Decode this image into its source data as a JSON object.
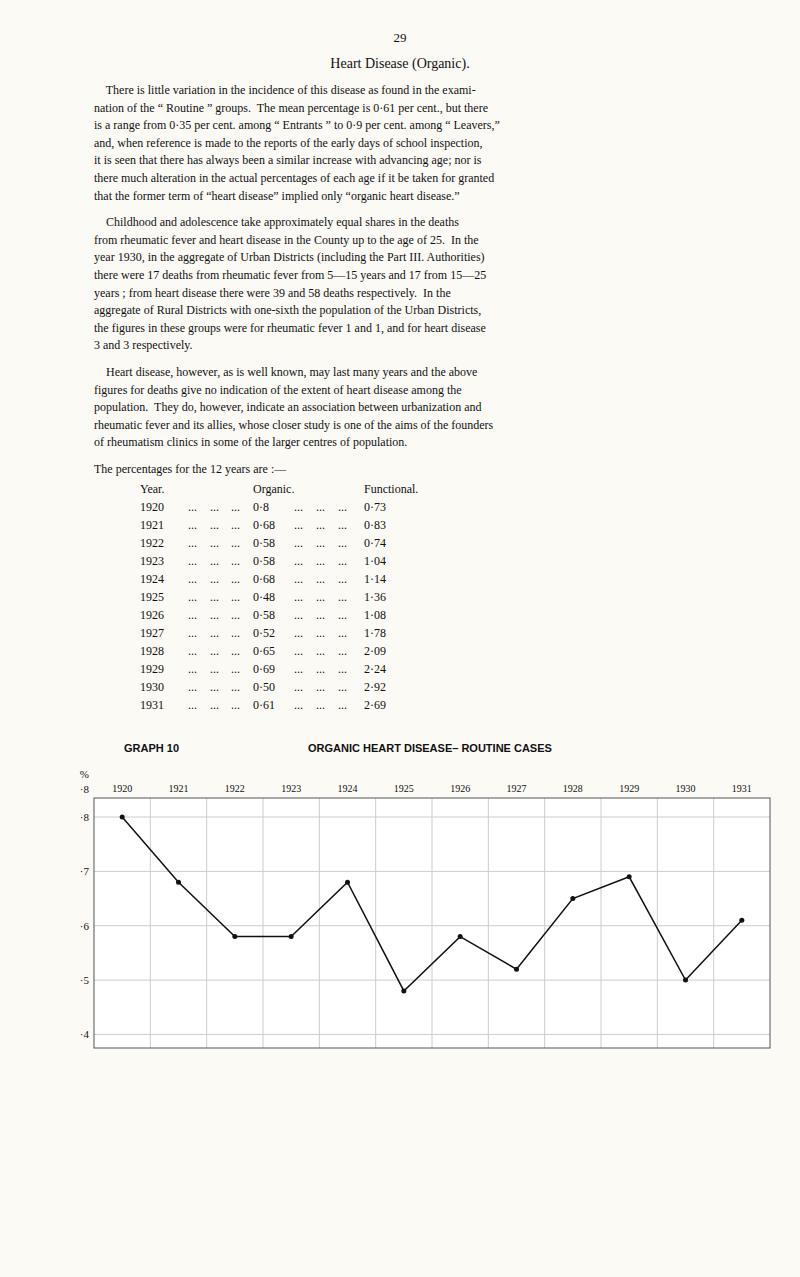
{
  "page": {
    "page_number": "29",
    "title": "Heart Disease (Organic).",
    "paragraphs": [
      [
        "    There is little variation in the incidence of this disease as found in the exami-",
        "nation of the “ Routine ” groups.  The mean percentage is 0·61 per cent., but there",
        "is a range from 0·35 per cent. among “ Entrants ” to 0·9 per cent. among “ Leavers,”",
        "and, when reference is made to the reports of the early days of school inspection,",
        "it is seen that there has always been a similar increase with advancing age; nor is",
        "there much alteration in the actual percentages of each age if it be taken for granted",
        "that the former term of “heart disease” implied only “organic heart disease.”"
      ],
      [
        "    Childhood and adolescence take approximately equal shares in the deaths",
        "from rheumatic fever and heart disease in the County up to the age of 25.  In the",
        "year 1930, in the aggregate of Urban Districts (including the Part III. Authorities)",
        "there were 17 deaths from rheumatic fever from 5—15 years and 17 from 15—25",
        "years ; from heart disease there were 39 and 58 deaths respectively.  In the",
        "aggregate of Rural Districts with one-sixth the population of the Urban Districts,",
        "the figures in these groups were for rheumatic fever 1 and 1, and for heart disease",
        "3 and 3 respectively."
      ],
      [
        "    Heart disease, however, as is well known, may last many years and the above",
        "figures for deaths give no indication of the extent of heart disease among the",
        "population.  They do, however, indicate an association between urbanization and",
        "rheumatic fever and its allies, whose closer study is one of the aims of the founders",
        "of rheumatism clinics in some of the larger centres of population."
      ]
    ],
    "table_intro": "The percentages for the 12 years are :—",
    "table_headers": [
      "Year.",
      "Organic.",
      "Functional."
    ],
    "table_leader": "...",
    "table_rows": [
      [
        "1920",
        "0·8",
        "0·73"
      ],
      [
        "1921",
        "0·68",
        "0·83"
      ],
      [
        "1922",
        "0·58",
        "0·74"
      ],
      [
        "1923",
        "0·58",
        "1·04"
      ],
      [
        "1924",
        "0·68",
        "1·14"
      ],
      [
        "1925",
        "0·48",
        "1·36"
      ],
      [
        "1926",
        "0·58",
        "1·08"
      ],
      [
        "1927",
        "0·52",
        "1·78"
      ],
      [
        "1928",
        "0·65",
        "2·09"
      ],
      [
        "1929",
        "0·69",
        "2·24"
      ],
      [
        "1930",
        "0·50",
        "2·92"
      ],
      [
        "1931",
        "0·61",
        "2·69"
      ]
    ]
  },
  "chart_data": {
    "type": "line",
    "title": "ORGANIC HEART DISEASE– ROUTINE CASES",
    "subtitle": "GRAPH 10",
    "ylabel": "%",
    "annotations": [
      "·8"
    ],
    "categories": [
      "1920",
      "1921",
      "1922",
      "1923",
      "1924",
      "1925",
      "1926",
      "1927",
      "1928",
      "1929",
      "1930",
      "1931"
    ],
    "values": [
      0.8,
      0.68,
      0.58,
      0.58,
      0.68,
      0.48,
      0.58,
      0.52,
      0.65,
      0.69,
      0.5,
      0.61
    ],
    "color": "#111111",
    "marker": "point",
    "ylim": [
      0.375,
      0.835
    ],
    "yticks": [
      {
        "value": 0.4,
        "label": "·4"
      },
      {
        "value": 0.5,
        "label": "·5"
      },
      {
        "value": 0.6,
        "label": "·6"
      },
      {
        "value": 0.7,
        "label": "·7"
      },
      {
        "value": 0.8,
        "label": "·8"
      }
    ],
    "grid": true
  }
}
